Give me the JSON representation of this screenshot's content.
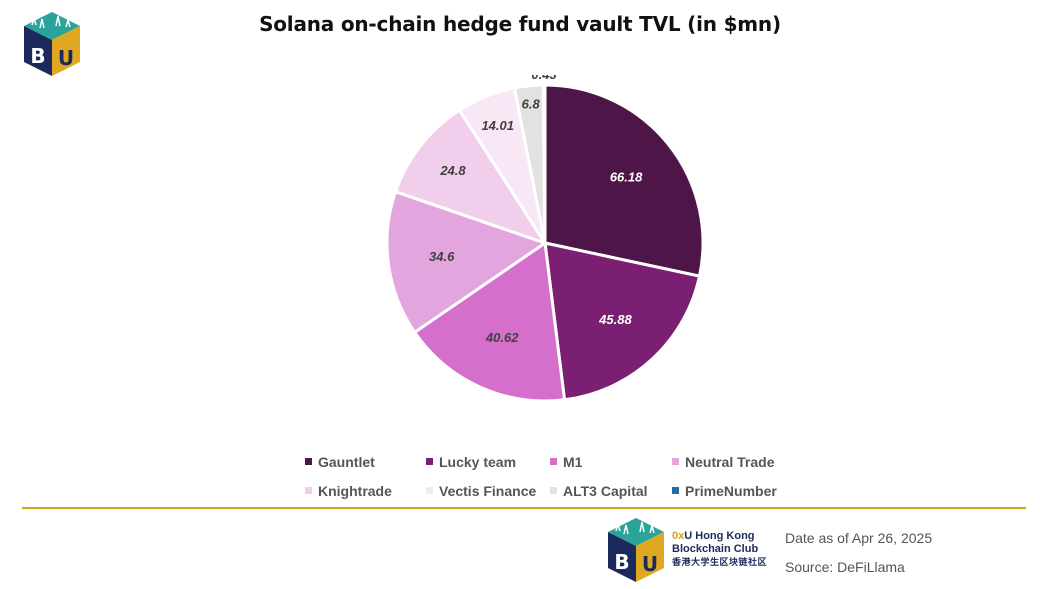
{
  "header": {
    "title": "Solana on-chain hedge fund vault TVL (in $mn)"
  },
  "chart_data": {
    "type": "pie",
    "title": "Solana on-chain hedge fund vault TVL (in $mn)",
    "series": [
      {
        "name": "Gauntlet",
        "value": 66.18,
        "label": "66.18",
        "color": "#4e1548",
        "label_color": "#ffffff"
      },
      {
        "name": "Lucky team",
        "value": 45.88,
        "label": "45.88",
        "color": "#7b1f72",
        "label_color": "#ffffff"
      },
      {
        "name": "M1",
        "value": 40.62,
        "label": "40.62",
        "color": "#d470cb",
        "label_color": "#404040"
      },
      {
        "name": "Neutral Trade",
        "value": 34.6,
        "label": "34.6",
        "color": "#e3a5dd",
        "label_color": "#404040"
      },
      {
        "name": "Knightrade",
        "value": 24.8,
        "label": "24.8",
        "color": "#f1cfec",
        "label_color": "#404040"
      },
      {
        "name": "Vectis Finance",
        "value": 14.01,
        "label": "14.01",
        "color": "#f8e8f5",
        "label_color": "#404040"
      },
      {
        "name": "ALT3 Capital",
        "value": 6.8,
        "label": "6.8",
        "color": "#e2e2e2",
        "label_color": "#404040"
      },
      {
        "name": "PrimeNumber",
        "value": 0.43,
        "label": "0.43",
        "color": "#1f6fa0",
        "label_color": "#404040"
      }
    ],
    "legend_placement": "bottom"
  },
  "legend": [
    [
      "Gauntlet",
      "Lucky team",
      "M1",
      "Neutral Trade"
    ],
    [
      "Knightrade",
      "Vectis Finance",
      "ALT3 Capital",
      "PrimeNumber"
    ]
  ],
  "footer": {
    "club_line1_prefix": "0x",
    "club_line1_u": "U",
    "club_line1_rest": " Hong Kong",
    "club_line2": "Blockchain Club",
    "club_line3": "香港大学生区块链社区",
    "date": "Date as of Apr 26, 2025",
    "source": "Source: DeFiLlama"
  },
  "logo": {
    "letter_b": "B",
    "letter_u": "U"
  },
  "icons": [
    "hkbc-logo-icon"
  ]
}
